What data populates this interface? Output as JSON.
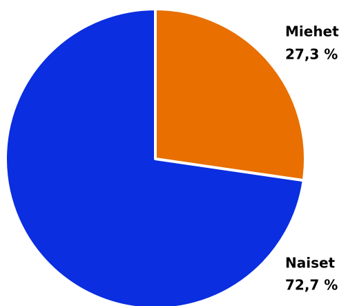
{
  "chart_data": {
    "type": "pie",
    "categories": [
      "Miehet",
      "Naiset"
    ],
    "values": [
      27.3,
      72.7
    ],
    "value_labels": [
      "27,3 %",
      "72,7 %"
    ],
    "colors": [
      "#e86f00",
      "#0a2ee0"
    ]
  }
}
